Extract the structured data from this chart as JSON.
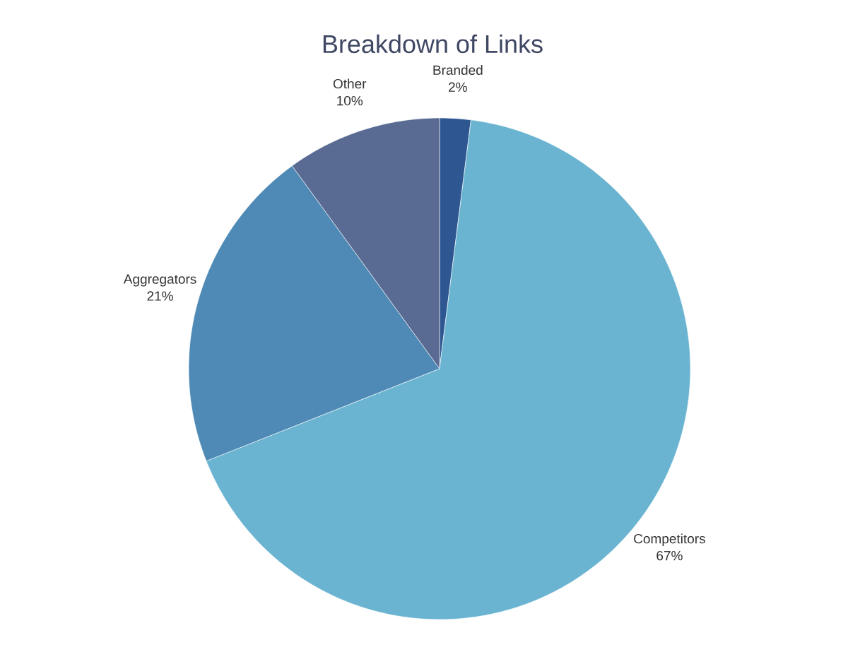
{
  "chart_data": {
    "type": "pie",
    "title": "Breakdown of Links",
    "categories": [
      "Branded",
      "Competitors",
      "Aggregators",
      "Other"
    ],
    "values": [
      2,
      67,
      21,
      10
    ],
    "value_labels": [
      "2%",
      "67%",
      "21%",
      "10%"
    ],
    "colors": [
      "#2e5791",
      "#6ab4d1",
      "#4e8ab5",
      "#5a6b93"
    ]
  }
}
